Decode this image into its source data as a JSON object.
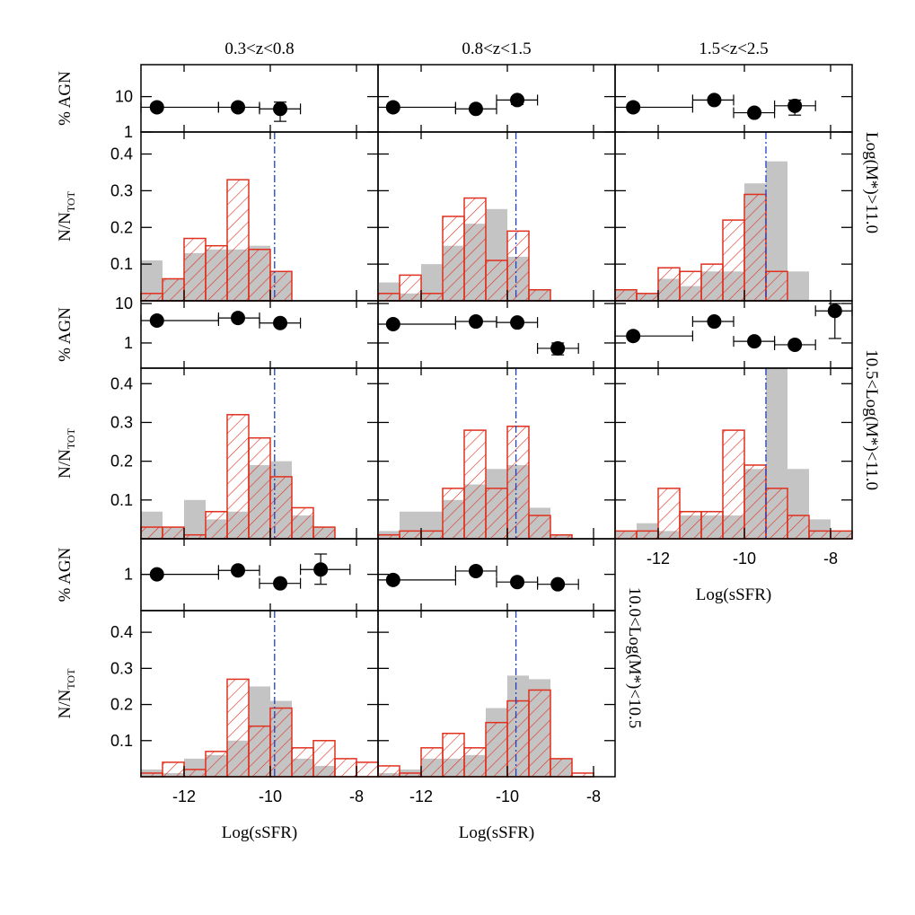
{
  "chart_data": {
    "type": "histogram",
    "columns": [
      "0.3<z<0.8",
      "0.8<z<1.5",
      "1.5<z<2.5"
    ],
    "x_label": "Log(sSFR)",
    "hist_ylabel": "N/N",
    "hist_ylabel_sub": "TOT",
    "agn_ylabel": "% AGN",
    "xlim": [
      -13,
      -7.5
    ],
    "xticks": [
      -12,
      -10,
      -8
    ],
    "bins": [
      -13,
      -12.5,
      -12,
      -11.5,
      -11,
      -10.5,
      -10,
      -9.5,
      -9,
      -8.5,
      -8,
      -7.5
    ],
    "thresholds": [
      -9.9,
      -9.8,
      -9.5
    ],
    "colors": {
      "all": "#c4c4c4",
      "agn_hosts": "#e0301e",
      "threshold": "#2040c0",
      "points": "#000000"
    },
    "rows": [
      {
        "label": "Log(M*)>11.0",
        "hist_ylim": [
          0,
          0.46
        ],
        "hist_yticks": [
          0.1,
          0.2,
          0.3,
          0.4
        ],
        "agn_ylim": [
          1,
          80
        ],
        "agn_yticks": [
          1,
          10
        ],
        "agn_log": true,
        "panels": [
          {
            "all": [
              0.11,
              0.06,
              0.13,
              0.14,
              0.14,
              0.15,
              0.08,
              0,
              0,
              0,
              0
            ],
            "agn_hosts": [
              0.02,
              0.06,
              0.17,
              0.15,
              0.33,
              0.14,
              0.08,
              0,
              0,
              0,
              0
            ],
            "agn": {
              "x": [
                -12.63,
                -10.75,
                -9.77
              ],
              "x_lo": [
                -13,
                -11.2,
                -10.25
              ],
              "x_hi": [
                -11.2,
                -10.25,
                -9.3
              ],
              "values": [
                5,
                5,
                4.5
              ],
              "y_lo": [
                null,
                null,
                2
              ],
              "y_hi": [
                null,
                null,
                7
              ]
            }
          },
          {
            "all": [
              0.05,
              0.02,
              0.1,
              0.15,
              0.21,
              0.25,
              0.12,
              0.03,
              0,
              0,
              0
            ],
            "agn_hosts": [
              0.02,
              0.07,
              0.02,
              0.23,
              0.28,
              0.11,
              0.19,
              0.03,
              0,
              0,
              0
            ],
            "agn": {
              "x": [
                -12.65,
                -10.73,
                -9.77
              ],
              "x_lo": [
                -13,
                -11.2,
                -10.25
              ],
              "x_hi": [
                -11.2,
                -10.25,
                -9.3
              ],
              "values": [
                5,
                4.5,
                8
              ],
              "y_lo": [
                null,
                null,
                6
              ],
              "y_hi": [
                null,
                null,
                10
              ]
            }
          },
          {
            "all": [
              0.03,
              0.02,
              0.06,
              0.04,
              0.08,
              0.08,
              0.32,
              0.38,
              0.08,
              0,
              0
            ],
            "agn_hosts": [
              0.03,
              0.02,
              0.09,
              0.08,
              0.1,
              0.22,
              0.29,
              0.08,
              0,
              0,
              0
            ],
            "agn": {
              "x": [
                -12.58,
                -10.7,
                -9.77,
                -8.83
              ],
              "x_lo": [
                -13,
                -11.2,
                -10.25,
                -9.3
              ],
              "x_hi": [
                -11.2,
                -10.25,
                -9.3,
                -8.35
              ],
              "values": [
                5,
                8,
                3.5,
                5.5
              ],
              "y_lo": [
                null,
                null,
                null,
                3
              ],
              "y_hi": [
                null,
                null,
                null,
                8
              ]
            }
          }
        ]
      },
      {
        "label": "10.5<Log(M*)<11.0",
        "hist_ylim": [
          0,
          0.44
        ],
        "hist_yticks": [
          0.1,
          0.2,
          0.3,
          0.4
        ],
        "agn_ylim": [
          0.23,
          11.7
        ],
        "agn_yticks": [
          1,
          10
        ],
        "agn_log": true,
        "panels": [
          {
            "all": [
              0.07,
              0.03,
              0.1,
              0.05,
              0.07,
              0.19,
              0.2,
              0.06,
              0.03,
              0,
              0
            ],
            "agn_hosts": [
              0.03,
              0.03,
              0.01,
              0.07,
              0.32,
              0.26,
              0.16,
              0.08,
              0.03,
              0,
              0
            ],
            "agn": {
              "x": [
                -12.63,
                -10.75,
                -9.77
              ],
              "x_lo": [
                -13,
                -11.2,
                -10.25
              ],
              "x_hi": [
                -11.2,
                -10.25,
                -9.3
              ],
              "values": [
                3.7,
                4.3,
                3.2
              ],
              "y_lo": [
                null,
                null,
                null
              ],
              "y_hi": [
                null,
                null,
                null
              ]
            }
          },
          {
            "all": [
              0.02,
              0.07,
              0.07,
              0.1,
              0.14,
              0.18,
              0.19,
              0.08,
              0.01,
              0,
              0
            ],
            "agn_hosts": [
              0.01,
              0.02,
              0.02,
              0.13,
              0.28,
              0.13,
              0.29,
              0.06,
              0.01,
              0,
              0
            ],
            "agn": {
              "x": [
                -12.65,
                -10.73,
                -9.77,
                -8.83
              ],
              "x_lo": [
                -13,
                -11.2,
                -10.25,
                -9.3
              ],
              "x_hi": [
                -11.2,
                -10.25,
                -9.3,
                -8.35
              ],
              "values": [
                3,
                3.5,
                3.3,
                0.73
              ],
              "y_lo": [
                null,
                null,
                null,
                0.5
              ],
              "y_hi": [
                null,
                null,
                null,
                1
              ]
            }
          },
          {
            "all": [
              0.02,
              0.04,
              0.02,
              0.06,
              0.06,
              0.06,
              0.18,
              0.44,
              0.18,
              0.05,
              0.02
            ],
            "agn_hosts": [
              0.02,
              0.02,
              0.13,
              0.07,
              0.07,
              0.28,
              0.19,
              0.13,
              0.06,
              0.02,
              0.02
            ],
            "agn": {
              "x": [
                -12.58,
                -10.7,
                -9.77,
                -8.83,
                -7.9
              ],
              "x_lo": [
                -13,
                -11.2,
                -10.25,
                -9.3,
                -8.35
              ],
              "x_hi": [
                -11.2,
                -10.25,
                -9.3,
                -8.35,
                -7.5
              ],
              "values": [
                1.5,
                3.5,
                1.1,
                0.9,
                6.5
              ],
              "y_lo": [
                null,
                null,
                null,
                null,
                1.3
              ],
              "y_hi": [
                null,
                null,
                null,
                null,
                10
              ]
            }
          }
        ]
      },
      {
        "label": "10.0<Log(M*)<10.5",
        "hist_ylim": [
          0,
          0.46
        ],
        "hist_yticks": [
          0.1,
          0.2,
          0.3,
          0.4
        ],
        "agn_ylim": [
          0.35,
          2.8
        ],
        "agn_yticks": [
          1
        ],
        "agn_log": true,
        "panels": [
          {
            "all": [
              0.02,
              0.01,
              0.05,
              0.06,
              0.1,
              0.25,
              0.21,
              0.05,
              0.03,
              0,
              0
            ],
            "agn_hosts": [
              0.01,
              0.04,
              0.02,
              0.07,
              0.27,
              0.14,
              0.19,
              0.08,
              0.1,
              0.05,
              0.04
            ],
            "agn": {
              "x": [
                -12.63,
                -10.75,
                -9.77,
                -8.83
              ],
              "x_lo": [
                -13,
                -11.2,
                -10.25,
                -9.3
              ],
              "x_hi": [
                -11.2,
                -10.25,
                -9.3,
                -8.15
              ],
              "values": [
                1,
                1.12,
                0.77,
                1.15
              ],
              "y_lo": [
                null,
                null,
                null,
                0.75
              ],
              "y_hi": [
                null,
                null,
                null,
                1.8
              ]
            }
          },
          {
            "all": [
              0.01,
              0.02,
              0.05,
              0.05,
              0.06,
              0.19,
              0.28,
              0.27,
              0.05,
              0,
              0
            ],
            "agn_hosts": [
              0.03,
              0.01,
              0.08,
              0.12,
              0.08,
              0.15,
              0.21,
              0.24,
              0.05,
              0.01,
              0
            ],
            "agn": {
              "x": [
                -12.65,
                -10.73,
                -9.77,
                -8.83
              ],
              "x_lo": [
                -13,
                -11.2,
                -10.25,
                -9.3
              ],
              "x_hi": [
                -11.2,
                -10.25,
                -9.3,
                -8.35
              ],
              "values": [
                0.85,
                1.1,
                0.8,
                0.75
              ],
              "y_lo": [
                null,
                null,
                null,
                null
              ],
              "y_hi": [
                null,
                null,
                null,
                null
              ]
            }
          }
        ]
      }
    ]
  }
}
